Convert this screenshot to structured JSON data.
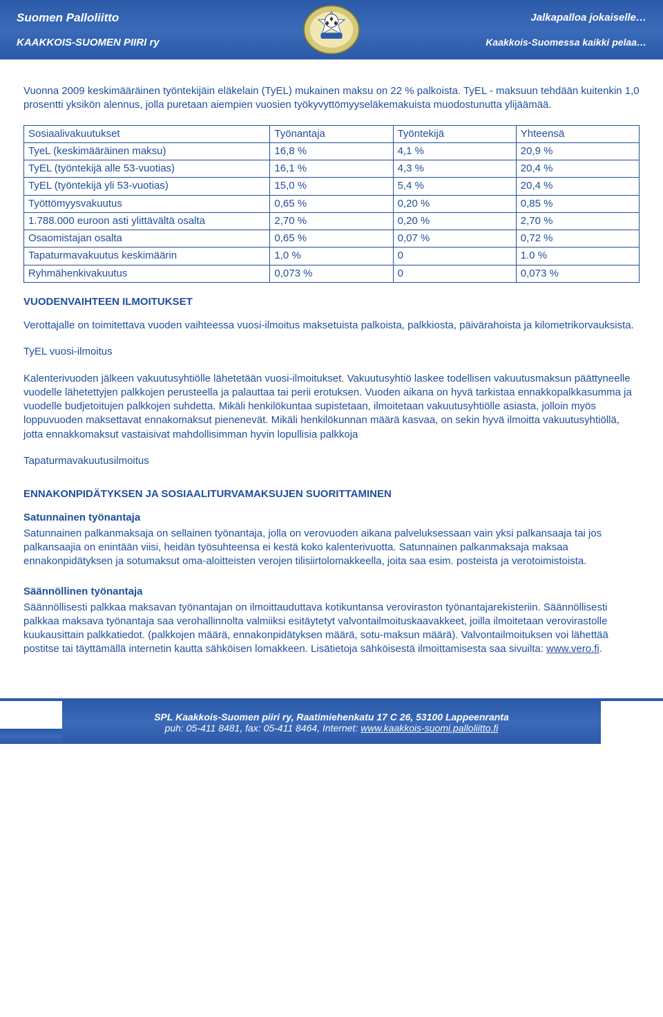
{
  "header": {
    "org": "Suomen Palloliitto",
    "region": "KAAKKOIS-SUOMEN PIIRI ry",
    "slogan1": "Jalkapalloa jokaiselle…",
    "slogan2": "Kaakkois-Suomessa kaikki pelaa…"
  },
  "intro": "Vuonna 2009 keskimääräinen työntekijäin eläkelain (TyEL) mukainen maksu on 22 % palkoista. TyEL - maksuun tehdään kuitenkin 1,0 prosentti yksikön alennus, jolla puretaan aiempien vuosien työkyvyttömyyseläkemakuista muodostunutta ylijäämää.",
  "table": {
    "columns": [
      "Sosiaalivakuutukset",
      "Työnantaja",
      "Työntekijä",
      "Yhteensä"
    ],
    "col_widths": [
      "40%",
      "20%",
      "20%",
      "20%"
    ],
    "border_color": "#1f4e9c",
    "rows": [
      [
        "TyeL (keskimääräinen maksu)",
        "16,8 %",
        "4,1 %",
        "20,9 %"
      ],
      [
        "TyEL (työntekijä alle 53-vuotias)",
        "16,1 %",
        "4,3 %",
        "20,4 %"
      ],
      [
        "TyEL (työntekijä yli 53-vuotias)",
        "15,0 %",
        "5,4 %",
        "20,4 %"
      ],
      [
        "Työttömyysvakuutus",
        "0,65 %",
        "0,20 %",
        "0,85 %"
      ],
      [
        "1.788.000 euroon asti ylittävältä osalta",
        "2,70 %",
        "0,20 %",
        "2,70 %"
      ],
      [
        "Osaomistajan osalta",
        "0,65 %",
        "0,07 %",
        "0,72 %"
      ],
      [
        "Tapaturmavakuutus keskimäärin",
        "1,0 %",
        "0",
        "1.0 %"
      ],
      [
        "Ryhmähenkivakuutus",
        "0,073 %",
        "0",
        "0,073 %"
      ]
    ]
  },
  "section1": {
    "title": "VUODENVAIHTEEN ILMOITUKSET",
    "p1": "Verottajalle on toimitettava vuoden vaihteessa vuosi-ilmoitus maksetuista palkoista, palkkiosta, päivärahoista ja kilometrikorvauksista.",
    "p2": "TyEL vuosi-ilmoitus",
    "p3": "Kalenterivuoden jälkeen vakuutusyhtiölle lähetetään vuosi-ilmoitukset. Vakuutusyhtiö laskee todellisen vakuutusmaksun päättyneelle vuodelle lähetettyjen palkkojen perusteella ja palauttaa tai perii erotuksen. Vuoden aikana on hyvä tarkistaa ennakkopalkkasumma ja vuodelle budjetoitujen palkkojen suhdetta. Mikäli henkilökuntaa supistetaan, ilmoitetaan vakuutusyhtiölle asiasta, jolloin myös loppuvuoden maksettavat ennakomaksut pienenevät. Mikäli henkilökunnan määrä kasvaa, on sekin hyvä ilmoitta vakuutusyhtiöllä, jotta ennakkomaksut vastaisivat mahdollisimman hyvin lopullisia palkkoja",
    "p4": "Tapaturmavakuutusilmoitus"
  },
  "section2": {
    "title": "ENNAKONPIDÄTYKSEN JA SOSIAALITURVAMAKSUJEN SUORITTAMINEN",
    "sub1_title": "Satunnainen työnantaja",
    "sub1_body": "Satunnainen palkanmaksaja on sellainen työnantaja, jolla on verovuoden aikana palveluksessaan vain yksi palkansaaja tai jos palkansaajia on enintään viisi, heidän työsuhteensa ei kestä koko kalenterivuotta. Satunnainen palkanmaksaja maksaa ennakonpidätyksen ja sotumaksut oma-aloitteisten verojen tilisiirtolomakkeella, joita saa esim. posteista ja verotoimistoista.",
    "sub2_title": "Säännöllinen työnantaja",
    "sub2_body": "Säännöllisesti palkkaa maksavan työnantajan on ilmoittauduttava kotikuntansa veroviraston työnantajarekisteriin. Säännöllisesti palkkaa maksava työnantaja saa verohallinnolta valmiiksi esitäytetyt valvontailmoituskaavakkeet, joilla ilmoitetaan verovirastolle kuukausittain palkkatiedot. (palkkojen määrä, ennakonpidätyksen määrä, sotu-maksun määrä). Valvontailmoituksen voi lähettää postitse tai täyttämällä internetin kautta sähköisen lomakkeen. Lisätietoja sähköisestä ilmoittamisesta saa sivuilta: ",
    "sub2_link": "www.vero.fi",
    "sub2_tail": "."
  },
  "footer": {
    "address": "SPL Kaakkois-Suomen piiri ry, Raatimiehenkatu 17 C 26, 53100 Lappeenranta",
    "contact_pre": "puh: 05-411 8481, fax: 05-411 8464, Internet: ",
    "contact_link": "www.kaakkois-suomi.palloliitto.fi"
  },
  "colors": {
    "text": "#1f4e9c",
    "header_bg": "#2a5aa8",
    "border": "#1f4e9c",
    "white": "#ffffff"
  }
}
